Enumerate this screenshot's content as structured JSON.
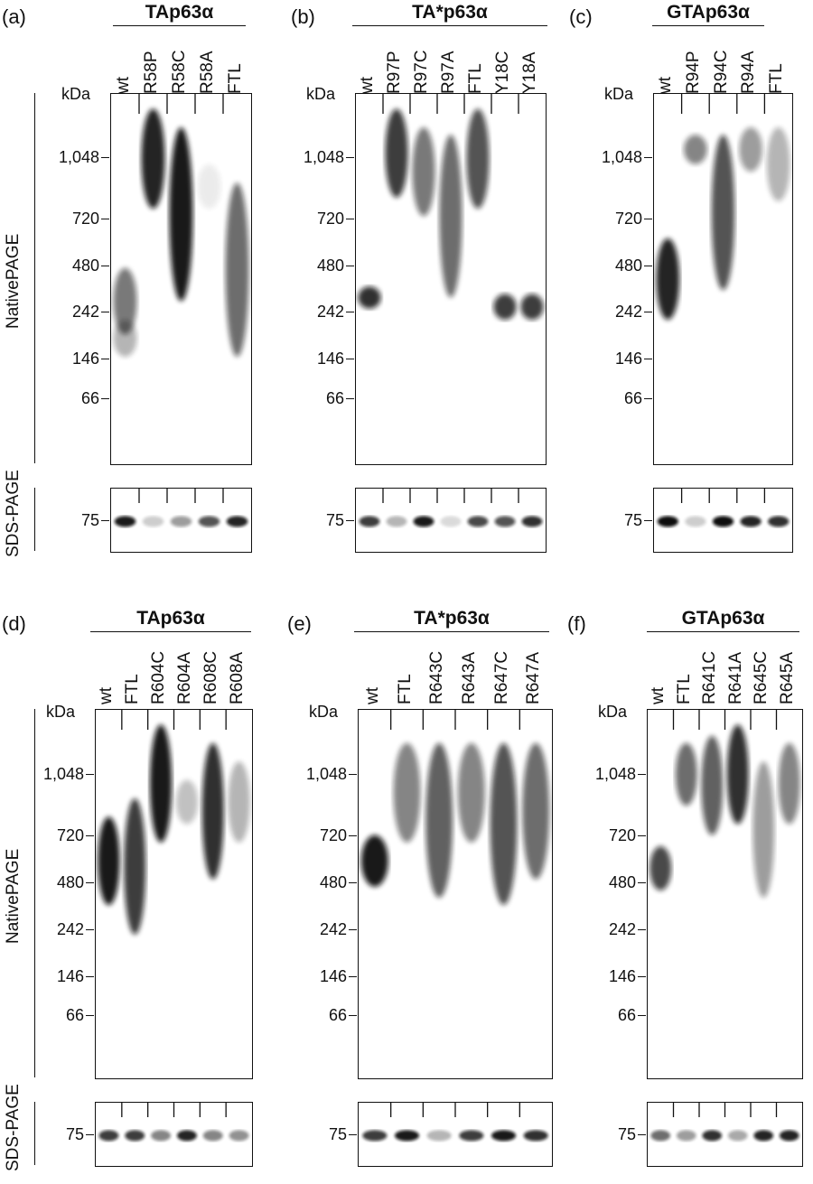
{
  "panels": [
    {
      "label": "(a)",
      "title": "TAp63α",
      "lanes": [
        "wt",
        "R58P",
        "R58C",
        "R58A",
        "FTL"
      ]
    },
    {
      "label": "(b)",
      "title": "TA*p63α",
      "lanes": [
        "wt",
        "R97P",
        "R97C",
        "R97A",
        "FTL",
        "Y18C",
        "Y18A"
      ]
    },
    {
      "label": "(c)",
      "title": "GTAp63α",
      "lanes": [
        "wt",
        "R94P",
        "R94C",
        "R94A",
        "FTL"
      ]
    },
    {
      "label": "(d)",
      "title": "TAp63α",
      "lanes": [
        "wt",
        "FTL",
        "R604C",
        "R604A",
        "R608C",
        "R608A"
      ]
    },
    {
      "label": "(e)",
      "title": "TA*p63α",
      "lanes": [
        "wt",
        "FTL",
        "R643C",
        "R643A",
        "R647C",
        "R647A"
      ]
    },
    {
      "label": "(f)",
      "title": "GTAp63α",
      "lanes": [
        "wt",
        "FTL",
        "R641C",
        "R641A",
        "R645C",
        "R645A"
      ]
    }
  ],
  "unit_label": "kDa",
  "markers": [
    "1,048",
    "720",
    "480",
    "242",
    "146",
    "66"
  ],
  "sds_marker": "75",
  "native_label": "NativePAGE",
  "sds_label": "SDS-PAGE"
}
